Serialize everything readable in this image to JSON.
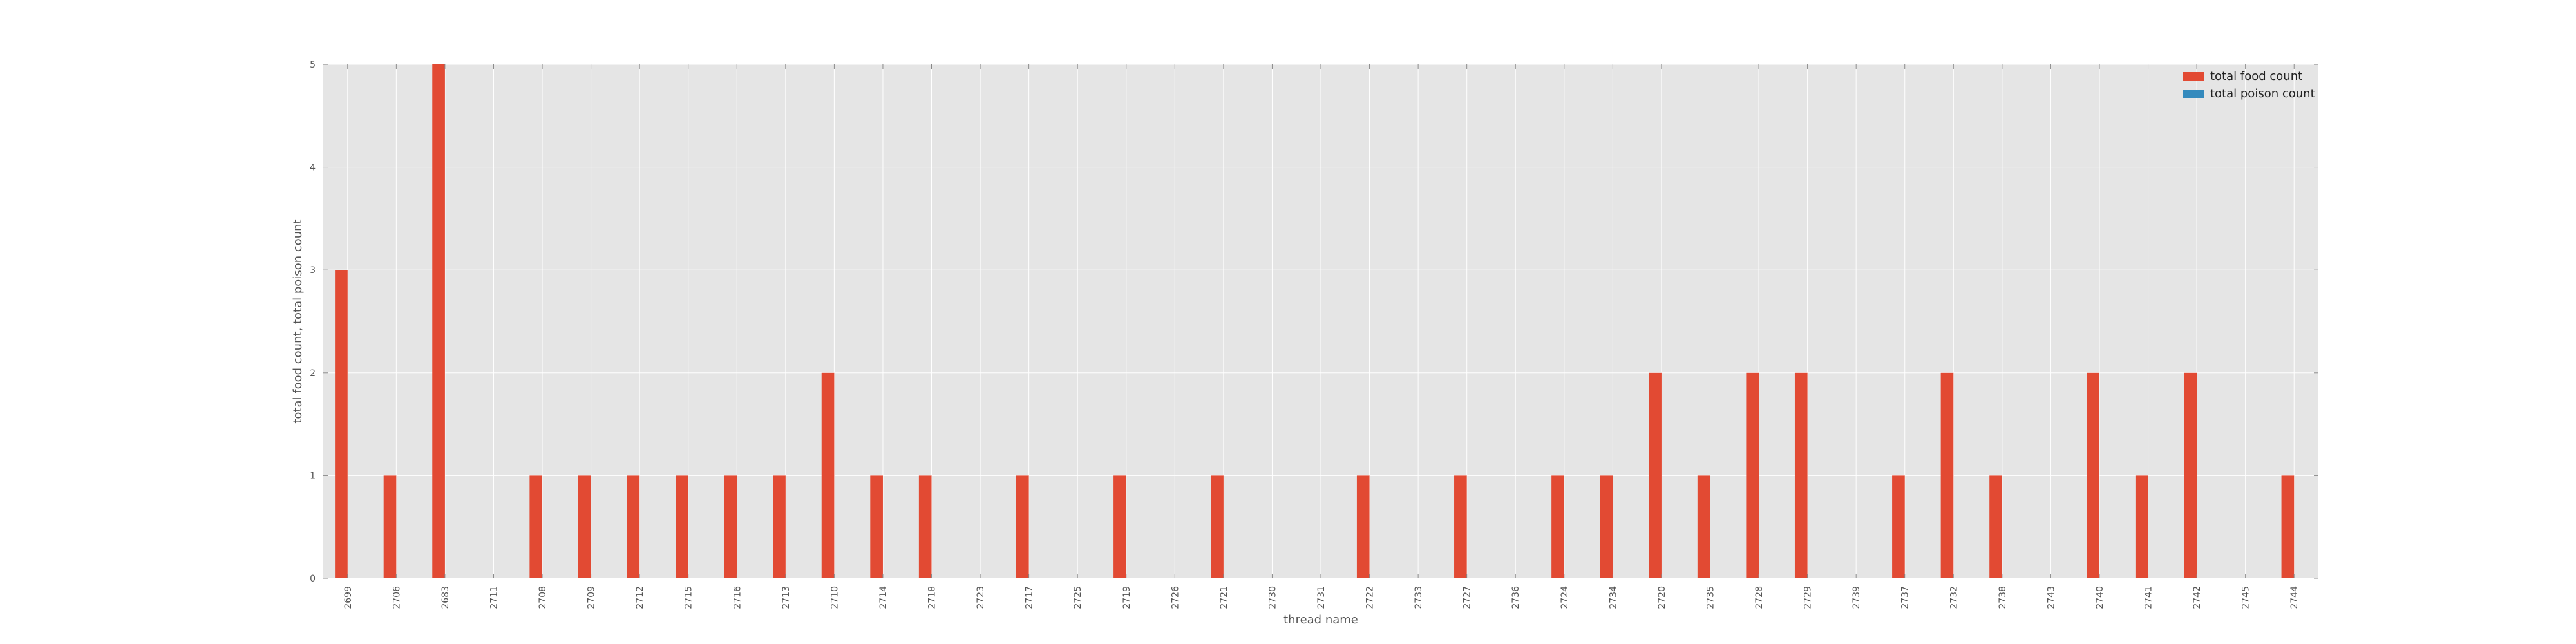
{
  "chart_data": {
    "type": "bar",
    "xlabel": "thread name",
    "ylabel": "total food count, total poison count",
    "ylim": [
      0,
      5
    ],
    "yticks": [
      "0",
      "1",
      "2",
      "3",
      "4",
      "5"
    ],
    "grid": true,
    "legend_placement": "top-right",
    "categories": [
      "2699",
      "2706",
      "2683",
      "2711",
      "2708",
      "2709",
      "2712",
      "2715",
      "2716",
      "2713",
      "2710",
      "2714",
      "2718",
      "2723",
      "2717",
      "2725",
      "2719",
      "2726",
      "2721",
      "2730",
      "2731",
      "2722",
      "2733",
      "2727",
      "2736",
      "2724",
      "2734",
      "2720",
      "2735",
      "2728",
      "2729",
      "2739",
      "2737",
      "2732",
      "2738",
      "2743",
      "2740",
      "2741",
      "2742",
      "2745",
      "2744"
    ],
    "series": [
      {
        "name": "total food count",
        "color": "#e24a33",
        "values": [
          3,
          1,
          5,
          0,
          1,
          1,
          1,
          1,
          1,
          1,
          2,
          1,
          1,
          0,
          1,
          0,
          1,
          0,
          1,
          0,
          0,
          1,
          0,
          1,
          0,
          1,
          1,
          2,
          1,
          2,
          2,
          0,
          1,
          2,
          1,
          0,
          2,
          1,
          2,
          0,
          1
        ]
      },
      {
        "name": "total poison count",
        "color": "#348abd",
        "values": [
          0,
          0,
          0,
          0,
          0,
          0,
          0,
          0,
          0,
          0,
          0,
          0,
          0,
          0,
          0,
          0,
          0,
          0,
          0,
          0,
          0,
          0,
          0,
          0,
          0,
          0,
          0,
          0,
          0,
          0,
          0,
          0,
          0,
          0,
          0,
          0,
          0,
          0,
          0,
          0,
          0
        ]
      }
    ]
  }
}
